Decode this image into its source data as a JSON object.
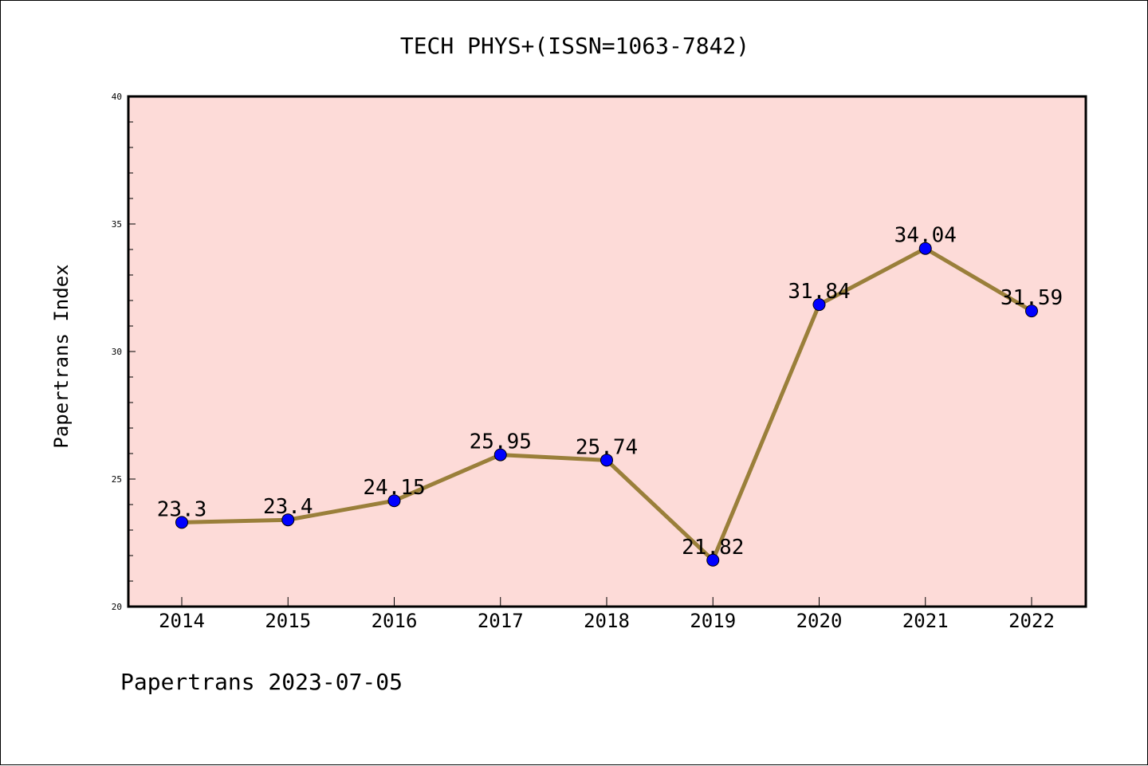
{
  "chart_data": {
    "type": "line",
    "title": "TECH PHYS+(ISSN=1063-7842)",
    "ylabel": "Papertrans Index",
    "xlabel": "",
    "categories": [
      "2014",
      "2015",
      "2016",
      "2017",
      "2018",
      "2019",
      "2020",
      "2021",
      "2022"
    ],
    "series": [
      {
        "values": [
          23.3,
          23.4,
          24.15,
          25.95,
          25.74,
          21.82,
          31.84,
          34.04,
          31.59
        ],
        "labels": [
          "23.3",
          "23.4",
          "24.15",
          "25.95",
          "25.74",
          "21.82",
          "31.84",
          "34.04",
          "31.59"
        ],
        "line_color": "#9a7f3a",
        "marker_color": "#0000ff"
      }
    ],
    "ylim": [
      20,
      40
    ],
    "yticks": [
      "20",
      "25",
      "30",
      "35",
      "40"
    ],
    "grid": false,
    "plot_background": "#fddbd8"
  },
  "footer": {
    "text": "Papertrans 2023-07-05"
  }
}
